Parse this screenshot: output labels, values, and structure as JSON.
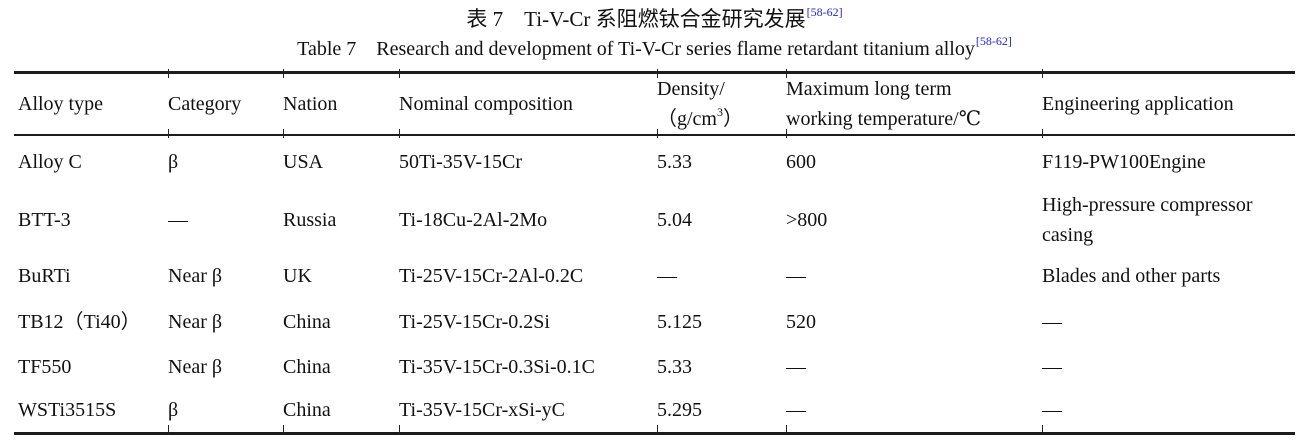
{
  "title": {
    "zh": "表 7 Ti-V-Cr 系阻燃钛合金研究发展",
    "en": "Table 7 Research and development of Ti-V-Cr series flame retardant titanium alloy",
    "citation": "[58-62]"
  },
  "table": {
    "headers": {
      "alloy_type": "Alloy type",
      "category": "Category",
      "nation": "Nation",
      "nominal_composition": "Nominal composition",
      "density_line1": "Density/",
      "density_line2_pre": "（g/cm",
      "density_sup": "3",
      "density_line2_post": "）",
      "max_temp_line1": "Maximum long term",
      "max_temp_line2": "working temperature/℃",
      "engineering_application": "Engineering application"
    },
    "rows": [
      {
        "alloy_type": "Alloy C",
        "category": "β",
        "nation": "USA",
        "composition": "50Ti-35V-15Cr",
        "density": "5.33",
        "max_temp": "600",
        "application": "F119-PW100Engine"
      },
      {
        "alloy_type": "BTT-3",
        "category": "—",
        "nation": "Russia",
        "composition": "Ti-18Cu-2Al-2Mo",
        "density": "5.04",
        "max_temp": ">800",
        "application": "High-pressure compressor casing"
      },
      {
        "alloy_type": "BuRTi",
        "category": "Near β",
        "nation": "UK",
        "composition": "Ti-25V-15Cr-2Al-0.2C",
        "density": "—",
        "max_temp": "—",
        "application": "Blades and other parts"
      },
      {
        "alloy_type": "TB12（Ti40）",
        "category": "Near β",
        "nation": "China",
        "composition": "Ti-25V-15Cr-0.2Si",
        "density": "5.125",
        "max_temp": "520",
        "application": "—"
      },
      {
        "alloy_type": "TF550",
        "category": "Near β",
        "nation": "China",
        "composition": "Ti-35V-15Cr-0.3Si-0.1C",
        "density": "5.33",
        "max_temp": "—",
        "application": "—"
      },
      {
        "alloy_type": "WSTi3515S",
        "category": "β",
        "nation": "China",
        "composition": "Ti-35V-15Cr-xSi-yC",
        "density": "5.295",
        "max_temp": "—",
        "application": "—"
      }
    ]
  },
  "colors": {
    "text": "#111111",
    "rule": "#1c1c1c",
    "citation": "#2525cc"
  }
}
